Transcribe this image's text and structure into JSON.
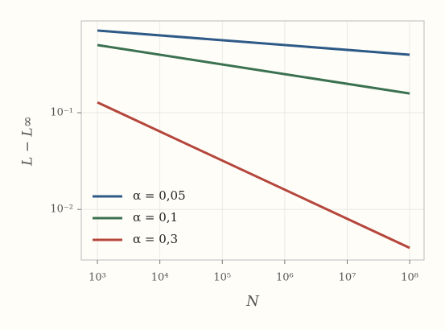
{
  "chart_data": {
    "type": "line",
    "xlabel": "N",
    "ylabel": "L − L∞",
    "x": [
      1000,
      100000000
    ],
    "series": [
      {
        "name": "α = 0,05",
        "color": "#2e5a87",
        "values": [
          0.708,
          0.398
        ]
      },
      {
        "name": "α = 0,1",
        "color": "#3a7150",
        "values": [
          0.501,
          0.158
        ]
      },
      {
        "name": "α = 0,3",
        "color": "#b5463c",
        "values": [
          0.128,
          0.004
        ]
      }
    ],
    "xscale": "log",
    "yscale": "log",
    "xlim": [
      552,
      170000000
    ],
    "ylim": [
      0.003,
      0.89
    ],
    "xticks": [
      {
        "value": 1000,
        "label": "10³"
      },
      {
        "value": 10000,
        "label": "10⁴"
      },
      {
        "value": 100000,
        "label": "10⁵"
      },
      {
        "value": 1000000,
        "label": "10⁶"
      },
      {
        "value": 10000000,
        "label": "10⁷"
      },
      {
        "value": 100000000,
        "label": "10⁸"
      }
    ],
    "yticks": [
      {
        "value": 0.01,
        "label": "10⁻²"
      },
      {
        "value": 0.1,
        "label": "10⁻¹"
      }
    ],
    "grid": true,
    "legend": "lower left"
  }
}
